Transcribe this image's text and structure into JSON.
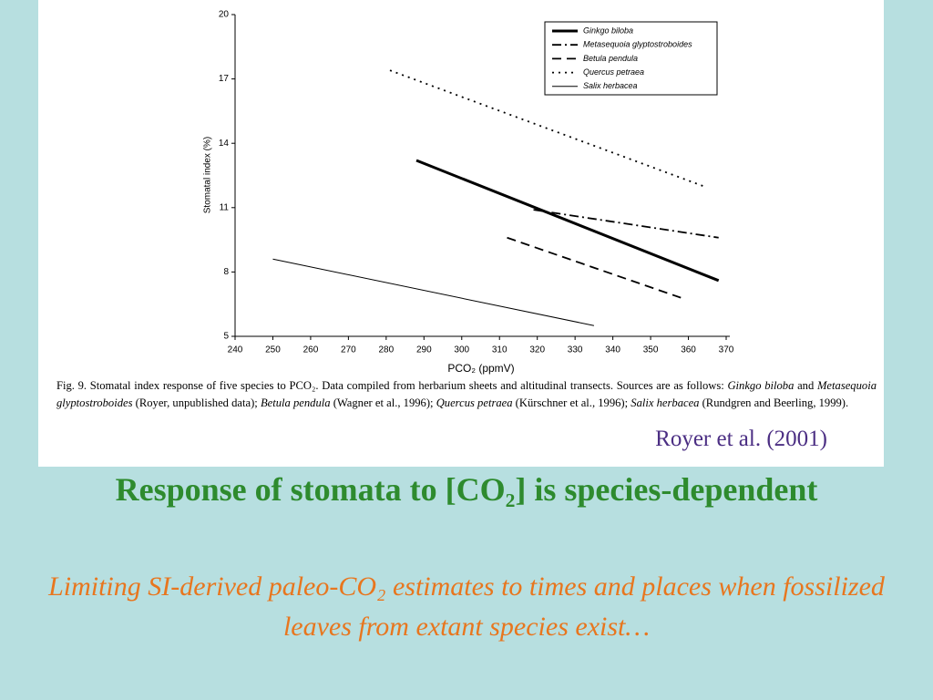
{
  "chart_data": {
    "type": "line",
    "x_label": "PCO₂ (ppmV)",
    "y_label": "Stomatal index (%)",
    "xlim": [
      240,
      370
    ],
    "xticks": [
      240,
      250,
      260,
      270,
      280,
      290,
      300,
      310,
      320,
      330,
      340,
      350,
      360,
      370
    ],
    "ylim": [
      5,
      20
    ],
    "yticks": [
      5,
      8,
      11,
      14,
      17,
      20
    ],
    "legend": "upper right",
    "series": [
      {
        "name": "Ginkgo biloba",
        "color": "#000000",
        "line_style": "thick",
        "x": [
          288,
          368
        ],
        "values": [
          13.2,
          7.6
        ]
      },
      {
        "name": "Metasequoia glyptostroboides",
        "color": "#000000",
        "line_style": "dash-dot",
        "x": [
          319,
          368
        ],
        "values": [
          10.9,
          9.6
        ]
      },
      {
        "name": "Betula pendula",
        "color": "#000000",
        "line_style": "dash",
        "x": [
          312,
          358
        ],
        "values": [
          9.6,
          6.8
        ]
      },
      {
        "name": "Quercus petraea",
        "color": "#000000",
        "line_style": "dot",
        "x": [
          281,
          364
        ],
        "values": [
          17.4,
          12.0
        ]
      },
      {
        "name": "Salix herbacea",
        "color": "#000000",
        "line_style": "thin",
        "x": [
          250,
          335
        ],
        "values": [
          8.6,
          5.5
        ]
      }
    ]
  },
  "caption": [
    "Fig. 9. Stomatal index response of five species to PCO₂. Data compiled from herbarium sheets and altitudinal transects. Sources are as follows: ",
    "Ginkgo biloba",
    " and ",
    "Metasequoia glyptostroboides",
    " (Royer, unpublished data); ",
    "Betula pendula",
    " (Wagner et al., 1996); ",
    "Quercus petraea",
    " (Kürschner et al., 1996); ",
    "Salix herbacea",
    " (Rundgren and Beerling, 1999)."
  ],
  "citation": "Royer et al. (2001)",
  "slide": {
    "title": "Response of stomata to [CO₂] is species-dependent",
    "subtitle": "Limiting SI-derived paleo-CO₂ estimates to times and places when fossilized leaves from extant species exist…"
  }
}
